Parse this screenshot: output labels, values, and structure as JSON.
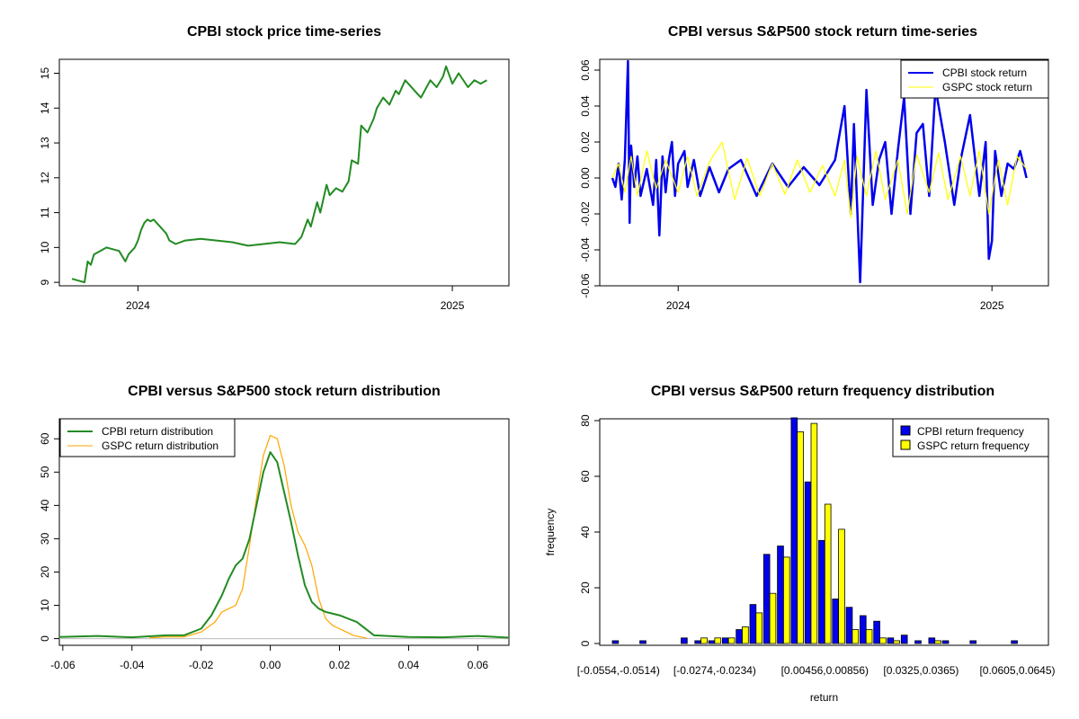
{
  "colors": {
    "cpbi_price": "#228b22",
    "cpbi_return": "#0000ee",
    "gspc_return": "#ffff00",
    "cpbi_dist": "#228b22",
    "gspc_dist": "#ffa500",
    "hist_cpbi": "#0000ee",
    "hist_gspc": "#ffff00"
  },
  "chart_data": [
    {
      "id": "price",
      "type": "line",
      "title": "CPBI stock price time-series",
      "xlabel": "",
      "ylabel": "",
      "x_tick_labels": [
        "2024",
        "2025"
      ],
      "x_ticks": [
        2024.0,
        2025.0
      ],
      "xlim": [
        2023.75,
        2025.18
      ],
      "ylim": [
        8.9,
        15.4
      ],
      "y_ticks": [
        9,
        10,
        11,
        12,
        13,
        14,
        15
      ],
      "series": [
        {
          "name": "CPBI price",
          "x": [
            2023.79,
            2023.81,
            2023.83,
            2023.84,
            2023.85,
            2023.86,
            2023.88,
            2023.9,
            2023.92,
            2023.94,
            2023.96,
            2023.97,
            2023.98,
            2023.99,
            2024.0,
            2024.01,
            2024.02,
            2024.03,
            2024.04,
            2024.05,
            2024.07,
            2024.09,
            2024.1,
            2024.12,
            2024.15,
            2024.2,
            2024.25,
            2024.3,
            2024.35,
            2024.4,
            2024.45,
            2024.5,
            2024.52,
            2024.54,
            2024.55,
            2024.57,
            2024.58,
            2024.6,
            2024.61,
            2024.63,
            2024.65,
            2024.67,
            2024.68,
            2024.7,
            2024.71,
            2024.73,
            2024.75,
            2024.76,
            2024.78,
            2024.8,
            2024.82,
            2024.83,
            2024.85,
            2024.86,
            2024.88,
            2024.9,
            2024.93,
            2024.95,
            2024.97,
            2024.98,
            2025.0,
            2025.02,
            2025.05,
            2025.07,
            2025.09,
            2025.11
          ],
          "y": [
            9.1,
            9.05,
            9.0,
            9.6,
            9.5,
            9.8,
            9.9,
            10.0,
            9.95,
            9.9,
            9.6,
            9.8,
            9.9,
            10.0,
            10.2,
            10.5,
            10.7,
            10.8,
            10.75,
            10.8,
            10.6,
            10.4,
            10.2,
            10.1,
            10.2,
            10.25,
            10.2,
            10.15,
            10.05,
            10.1,
            10.15,
            10.1,
            10.3,
            10.8,
            10.6,
            11.3,
            11.0,
            11.8,
            11.5,
            11.7,
            11.6,
            11.9,
            12.5,
            12.4,
            13.5,
            13.3,
            13.7,
            14.0,
            14.3,
            14.1,
            14.5,
            14.4,
            14.8,
            14.7,
            14.5,
            14.3,
            14.8,
            14.6,
            14.9,
            15.2,
            14.7,
            15.0,
            14.6,
            14.8,
            14.7,
            14.8
          ]
        }
      ]
    },
    {
      "id": "returns",
      "type": "line",
      "title": "CPBI versus S&P500 stock return time-series",
      "xlabel": "",
      "ylabel": "",
      "x_tick_labels": [
        "2024",
        "2025"
      ],
      "x_ticks": [
        2024.0,
        2025.0
      ],
      "xlim": [
        2023.75,
        2025.18
      ],
      "ylim": [
        -0.06,
        0.066
      ],
      "y_ticks": [
        -0.06,
        -0.04,
        -0.02,
        0.0,
        0.02,
        0.04,
        0.06
      ],
      "y_tick_labels": [
        "-0.06",
        "-0.04",
        "-0.02",
        "0.00",
        "0.02",
        "0.04",
        "0.06"
      ],
      "legend": [
        "CPBI stock return",
        "GSPC stock return"
      ],
      "legend_position": "top-right",
      "series": [
        {
          "name": "CPBI stock return",
          "x": [
            2023.79,
            2023.8,
            2023.81,
            2023.82,
            2023.83,
            2023.84,
            2023.845,
            2023.85,
            2023.86,
            2023.87,
            2023.88,
            2023.9,
            2023.92,
            2023.93,
            2023.94,
            2023.95,
            2023.96,
            2023.97,
            2023.98,
            2023.99,
            2024.0,
            2024.02,
            2024.03,
            2024.05,
            2024.07,
            2024.1,
            2024.13,
            2024.16,
            2024.2,
            2024.25,
            2024.3,
            2024.35,
            2024.4,
            2024.45,
            2024.5,
            2024.53,
            2024.55,
            2024.56,
            2024.58,
            2024.6,
            2024.62,
            2024.64,
            2024.66,
            2024.68,
            2024.7,
            2024.72,
            2024.74,
            2024.76,
            2024.78,
            2024.8,
            2024.82,
            2024.85,
            2024.88,
            2024.9,
            2024.93,
            2024.96,
            2024.98,
            2024.99,
            2025.0,
            2025.01,
            2025.03,
            2025.05,
            2025.07,
            2025.09,
            2025.11
          ],
          "y": [
            0.0,
            -0.005,
            0.008,
            -0.012,
            0.01,
            0.065,
            -0.025,
            0.018,
            -0.005,
            0.012,
            -0.01,
            0.005,
            -0.015,
            0.01,
            -0.032,
            0.012,
            -0.008,
            0.01,
            0.02,
            -0.01,
            0.008,
            0.015,
            -0.005,
            0.01,
            -0.01,
            0.006,
            -0.008,
            0.005,
            0.01,
            -0.01,
            0.008,
            -0.005,
            0.006,
            -0.004,
            0.01,
            0.04,
            -0.02,
            0.03,
            -0.058,
            0.049,
            -0.015,
            0.01,
            0.02,
            -0.02,
            0.015,
            0.045,
            -0.02,
            0.025,
            0.03,
            -0.01,
            0.05,
            0.02,
            -0.015,
            0.01,
            0.035,
            -0.01,
            0.02,
            -0.045,
            -0.035,
            0.015,
            -0.01,
            0.008,
            0.005,
            0.015,
            0.0
          ]
        },
        {
          "name": "GSPC stock return",
          "x": [
            2023.79,
            2023.81,
            2023.83,
            2023.85,
            2023.87,
            2023.9,
            2023.93,
            2023.96,
            2024.0,
            2024.03,
            2024.06,
            2024.1,
            2024.14,
            2024.18,
            2024.22,
            2024.26,
            2024.3,
            2024.34,
            2024.38,
            2024.42,
            2024.46,
            2024.5,
            2024.53,
            2024.55,
            2024.57,
            2024.6,
            2024.63,
            2024.66,
            2024.7,
            2024.73,
            2024.76,
            2024.8,
            2024.83,
            2024.86,
            2024.9,
            2024.93,
            2024.96,
            2024.99,
            2025.02,
            2025.05,
            2025.08,
            2025.11
          ],
          "y": [
            0.0,
            0.008,
            -0.008,
            0.012,
            -0.01,
            0.015,
            -0.006,
            0.01,
            -0.008,
            0.012,
            -0.01,
            0.009,
            0.02,
            -0.012,
            0.011,
            -0.01,
            0.008,
            -0.009,
            0.01,
            -0.008,
            0.007,
            -0.01,
            0.01,
            -0.022,
            0.012,
            -0.01,
            0.015,
            -0.012,
            0.01,
            -0.02,
            0.013,
            -0.008,
            0.014,
            -0.012,
            0.012,
            -0.01,
            0.015,
            -0.02,
            0.01,
            -0.015,
            0.012,
            0.005
          ]
        }
      ]
    },
    {
      "id": "density",
      "type": "line",
      "title": "CPBI versus S&P500 stock return distribution",
      "xlabel": "",
      "ylabel": "",
      "xlim": [
        -0.061,
        0.069
      ],
      "ylim": [
        -2,
        66
      ],
      "x_ticks": [
        -0.06,
        -0.04,
        -0.02,
        0.0,
        0.02,
        0.04,
        0.06
      ],
      "x_tick_labels": [
        "-0.06",
        "-0.04",
        "-0.02",
        "0.00",
        "0.02",
        "0.04",
        "0.06"
      ],
      "y_ticks": [
        0,
        10,
        20,
        30,
        40,
        50,
        60
      ],
      "legend": [
        "CPBI return distribution",
        "GSPC return distribution"
      ],
      "legend_position": "top-left",
      "series": [
        {
          "name": "CPBI return distribution",
          "x": [
            -0.061,
            -0.05,
            -0.04,
            -0.03,
            -0.025,
            -0.02,
            -0.017,
            -0.014,
            -0.012,
            -0.01,
            -0.008,
            -0.006,
            -0.004,
            -0.002,
            0.0,
            0.002,
            0.004,
            0.006,
            0.008,
            0.01,
            0.012,
            0.014,
            0.016,
            0.02,
            0.025,
            0.03,
            0.04,
            0.05,
            0.06,
            0.069
          ],
          "y": [
            0.5,
            0.8,
            0.4,
            1.0,
            1.0,
            3,
            7,
            13,
            18,
            22,
            24,
            30,
            40,
            50,
            56,
            53,
            44,
            35,
            25,
            16,
            11,
            9,
            8,
            7,
            5,
            1,
            0.5,
            0.4,
            0.8,
            0.3
          ]
        },
        {
          "name": "GSPC return distribution",
          "x": [
            -0.035,
            -0.03,
            -0.025,
            -0.02,
            -0.016,
            -0.014,
            -0.012,
            -0.01,
            -0.008,
            -0.006,
            -0.004,
            -0.002,
            0.0,
            0.002,
            0.004,
            0.006,
            0.008,
            0.01,
            0.012,
            0.014,
            0.016,
            0.018,
            0.02,
            0.024,
            0.028
          ],
          "y": [
            0.2,
            0.5,
            0.5,
            2,
            5,
            8,
            9,
            10,
            15,
            28,
            42,
            55,
            61,
            60,
            52,
            40,
            32,
            28,
            22,
            12,
            6,
            4,
            3,
            1,
            0.1
          ]
        }
      ]
    },
    {
      "id": "histogram",
      "type": "bar",
      "title": "CPBI versus S&P500 return frequency distribution",
      "xlabel": "return",
      "ylabel": "frequency",
      "ylim": [
        0,
        80
      ],
      "y_ticks": [
        0,
        20,
        40,
        60,
        80
      ],
      "category_tick_labels": [
        "[-0.0554,-0.0514)",
        "[-0.0274,-0.0234)",
        "[0.00456,0.00856)",
        "[0.0325,0.0365)",
        "[0.0605,0.0645)"
      ],
      "category_tick_index": [
        0,
        7,
        15,
        22,
        29
      ],
      "legend": [
        "CPBI return frequency",
        "GSPC return frequency"
      ],
      "legend_position": "top-right",
      "series": [
        {
          "name": "CPBI return frequency",
          "values": [
            1,
            0,
            1,
            0,
            0,
            2,
            1,
            1,
            2,
            5,
            14,
            32,
            35,
            81,
            58,
            37,
            16,
            13,
            10,
            8,
            2,
            3,
            1,
            2,
            1,
            0,
            1,
            0,
            0,
            1
          ]
        },
        {
          "name": "GSPC return frequency",
          "values": [
            0,
            0,
            0,
            0,
            0,
            0,
            2,
            2,
            2,
            6,
            11,
            18,
            31,
            76,
            79,
            50,
            41,
            5,
            5,
            2,
            1,
            0,
            0,
            1,
            0,
            0,
            0,
            0,
            0,
            0
          ]
        }
      ]
    }
  ]
}
